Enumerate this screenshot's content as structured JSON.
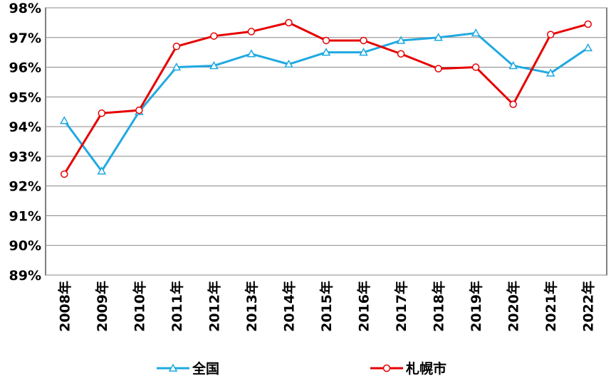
{
  "chart_data": {
    "type": "line",
    "categories": [
      "2008年",
      "2009年",
      "2010年",
      "2011年",
      "2012年",
      "2013年",
      "2014年",
      "2015年",
      "2016年",
      "2017年",
      "2018年",
      "2019年",
      "2020年",
      "2021年",
      "2022年"
    ],
    "series": [
      {
        "name": "全国",
        "color": "#1fa9e1",
        "marker": "triangle",
        "values": [
          94.2,
          92.5,
          94.5,
          96.0,
          96.05,
          96.45,
          96.1,
          96.5,
          96.5,
          96.9,
          97.0,
          97.15,
          96.05,
          95.8,
          96.65
        ]
      },
      {
        "name": "札幌市",
        "color": "#e60000",
        "marker": "circle",
        "values": [
          92.4,
          94.45,
          94.55,
          96.7,
          97.05,
          97.2,
          97.5,
          96.9,
          96.9,
          96.45,
          95.95,
          96.0,
          94.75,
          97.1,
          97.45
        ]
      }
    ],
    "ylim": [
      89,
      98
    ],
    "yticks": [
      {
        "value": 89,
        "label": "89%"
      },
      {
        "value": 90,
        "label": "90%"
      },
      {
        "value": 91,
        "label": "91%"
      },
      {
        "value": 92,
        "label": "92%"
      },
      {
        "value": 93,
        "label": "93%"
      },
      {
        "value": 94,
        "label": "94%"
      },
      {
        "value": 95,
        "label": "95%"
      },
      {
        "value": 96,
        "label": "96%"
      },
      {
        "value": 97,
        "label": "97%"
      },
      {
        "value": 98,
        "label": "98%"
      }
    ],
    "grid": true,
    "legend": "bottom"
  }
}
